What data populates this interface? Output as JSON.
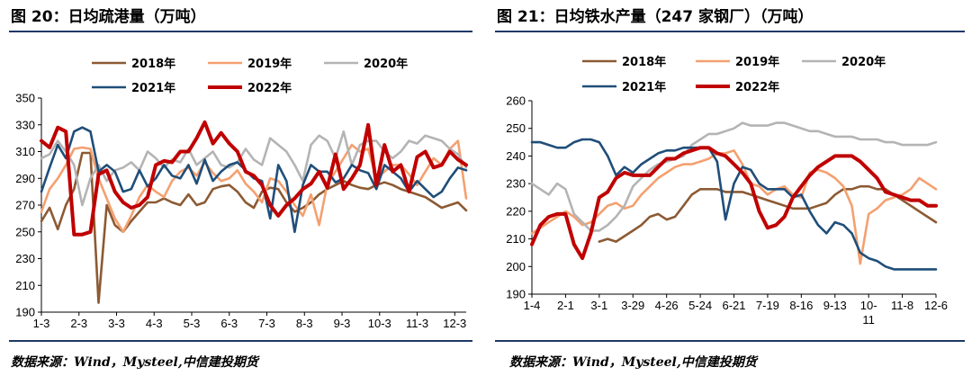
{
  "page": {
    "left_title": "图 20：日均疏港量（万吨）",
    "right_title": "图 21：日均铁水产量（247 家钢厂）（万吨）",
    "left_source": "数据来源：Wind，Mysteel,中信建投期货",
    "right_source": "数据来源：Wind，Mysteel,中信建投期货"
  },
  "colors": {
    "2018年": "#8c5a33",
    "2019年": "#f4a070",
    "2020年": "#b4b4b4",
    "2021年": "#1f4e79",
    "2022年": "#c00000"
  },
  "chart_data": [
    {
      "type": "line",
      "title": "日均疏港量（万吨）",
      "xlabel": "",
      "ylabel": "",
      "ylim": [
        190,
        350
      ],
      "yticks": [
        190,
        210,
        230,
        250,
        270,
        290,
        310,
        330,
        350
      ],
      "x_tick_labels": [
        "1-3",
        "2-3",
        "3-3",
        "4-3",
        "5-3",
        "6-3",
        "7-3",
        "8-3",
        "9-3",
        "10-3",
        "11-3",
        "12-3"
      ],
      "x_count": 53,
      "series": [
        {
          "name": "2018年",
          "values": [
            258,
            268,
            252,
            270,
            282,
            309,
            309,
            197,
            270,
            255,
            250,
            258,
            265,
            272,
            272,
            275,
            272,
            270,
            278,
            270,
            272,
            282,
            284,
            285,
            280,
            272,
            268,
            280,
            283,
            282,
            272,
            265,
            268,
            272,
            278,
            282,
            285,
            288,
            285,
            283,
            282,
            285,
            287,
            285,
            282,
            280,
            278,
            276,
            272,
            268,
            270,
            272,
            266
          ]
        },
        {
          "name": "2019年",
          "values": [
            265,
            282,
            290,
            300,
            312,
            313,
            312,
            290,
            275,
            260,
            250,
            262,
            276,
            285,
            280,
            276,
            288,
            295,
            298,
            292,
            302,
            294,
            288,
            290,
            296,
            286,
            280,
            272,
            290,
            288,
            280,
            270,
            262,
            278,
            255,
            286,
            295,
            305,
            315,
            310,
            312,
            290,
            295,
            300,
            300,
            293,
            285,
            295,
            305,
            300,
            312,
            318,
            275
          ]
        },
        {
          "name": "2020年",
          "values": [
            305,
            308,
            318,
            310,
            300,
            270,
            290,
            300,
            288,
            296,
            298,
            302,
            296,
            310,
            305,
            298,
            304,
            302,
            312,
            300,
            305,
            310,
            300,
            298,
            302,
            312,
            304,
            300,
            320,
            315,
            310,
            300,
            288,
            315,
            322,
            318,
            305,
            325,
            300,
            315,
            318,
            318,
            310,
            305,
            310,
            318,
            316,
            322,
            320,
            318,
            312,
            308,
            298
          ]
        },
        {
          "name": "2021年",
          "values": [
            280,
            298,
            315,
            305,
            325,
            328,
            325,
            295,
            300,
            295,
            280,
            282,
            296,
            284,
            290,
            300,
            292,
            290,
            300,
            286,
            304,
            288,
            295,
            300,
            302,
            296,
            290,
            288,
            260,
            300,
            288,
            250,
            285,
            300,
            295,
            295,
            287,
            290,
            300,
            296,
            294,
            282,
            300,
            295,
            290,
            280,
            288,
            282,
            276,
            280,
            290,
            298,
            296
          ]
        },
        {
          "name": "2022年",
          "values": [
            318,
            313,
            328,
            325,
            248,
            248,
            250,
            293,
            296,
            280,
            272,
            268,
            270,
            276,
            300,
            303,
            302,
            310,
            310,
            320,
            332,
            316,
            324,
            316,
            310,
            295,
            292,
            285,
            270,
            262,
            270,
            275,
            282,
            286,
            295,
            283,
            308,
            282,
            290,
            300,
            330,
            285,
            315,
            295,
            300,
            280,
            306,
            310,
            298,
            300,
            310,
            304,
            300
          ]
        }
      ]
    },
    {
      "type": "line",
      "title": "日均铁水产量（247 家钢厂）（万吨）",
      "xlabel": "",
      "ylabel": "",
      "ylim": [
        190,
        260
      ],
      "yticks": [
        190,
        200,
        210,
        220,
        230,
        240,
        250,
        260
      ],
      "x_tick_labels": [
        "1-4",
        "2-1",
        "3-1",
        "3-29",
        "4-26",
        "5-24",
        "6-21",
        "7-19",
        "8-16",
        "9-13",
        "10-",
        "11-8",
        "12-6"
      ],
      "x_extra_label": "11",
      "x_count": 49,
      "series": [
        {
          "name": "2018年",
          "values": [
            null,
            null,
            null,
            null,
            null,
            null,
            null,
            null,
            209,
            210,
            209,
            211,
            213,
            215,
            218,
            219,
            217,
            218,
            222,
            226,
            228,
            228,
            228,
            227,
            227,
            227,
            226,
            225,
            224,
            223,
            222,
            221,
            221,
            221,
            222,
            223,
            226,
            228,
            228,
            229,
            229,
            228,
            228,
            226,
            224,
            222,
            220,
            218,
            216
          ]
        },
        {
          "name": "2019年",
          "values": [
            212,
            214,
            216,
            218,
            220,
            218,
            215,
            216,
            219,
            222,
            223,
            221,
            222,
            226,
            229,
            232,
            234,
            236,
            237,
            237,
            238,
            239,
            241,
            241,
            242,
            237,
            230,
            229,
            226,
            228,
            229,
            226,
            225,
            234,
            235,
            234,
            232,
            229,
            222,
            201,
            219,
            221,
            224,
            225,
            226,
            228,
            232,
            230,
            228
          ]
        },
        {
          "name": "2020年",
          "values": [
            230,
            228,
            226,
            230,
            228,
            219,
            216,
            213,
            213,
            215,
            218,
            222,
            229,
            232,
            235,
            237,
            238,
            239,
            240,
            244,
            246,
            248,
            248,
            249,
            250,
            252,
            251,
            251,
            251,
            252,
            252,
            251,
            250,
            249,
            249,
            248,
            247,
            247,
            247,
            246,
            246,
            246,
            245,
            245,
            244,
            244,
            244,
            244,
            245
          ]
        },
        {
          "name": "2021年",
          "values": [
            245,
            245,
            244,
            243,
            243,
            245,
            246,
            246,
            245,
            240,
            233,
            236,
            234,
            237,
            239,
            241,
            242,
            242,
            243,
            243,
            243,
            243,
            238,
            217,
            230,
            236,
            235,
            230,
            228,
            228,
            228,
            225,
            226,
            220,
            215,
            212,
            216,
            215,
            212,
            205,
            203,
            202,
            200,
            199,
            199,
            199,
            199,
            199,
            199
          ]
        },
        {
          "name": "2022年",
          "values": [
            208,
            215,
            218,
            219,
            219,
            208,
            203,
            212,
            225,
            227,
            232,
            234,
            233,
            233,
            233,
            236,
            239,
            239,
            241,
            242,
            243,
            243,
            241,
            240,
            237,
            234,
            230,
            220,
            214,
            215,
            218,
            225,
            229,
            233,
            236,
            238,
            240,
            240,
            240,
            238,
            235,
            232,
            227,
            226,
            225,
            224,
            224,
            222,
            222
          ]
        }
      ]
    }
  ]
}
